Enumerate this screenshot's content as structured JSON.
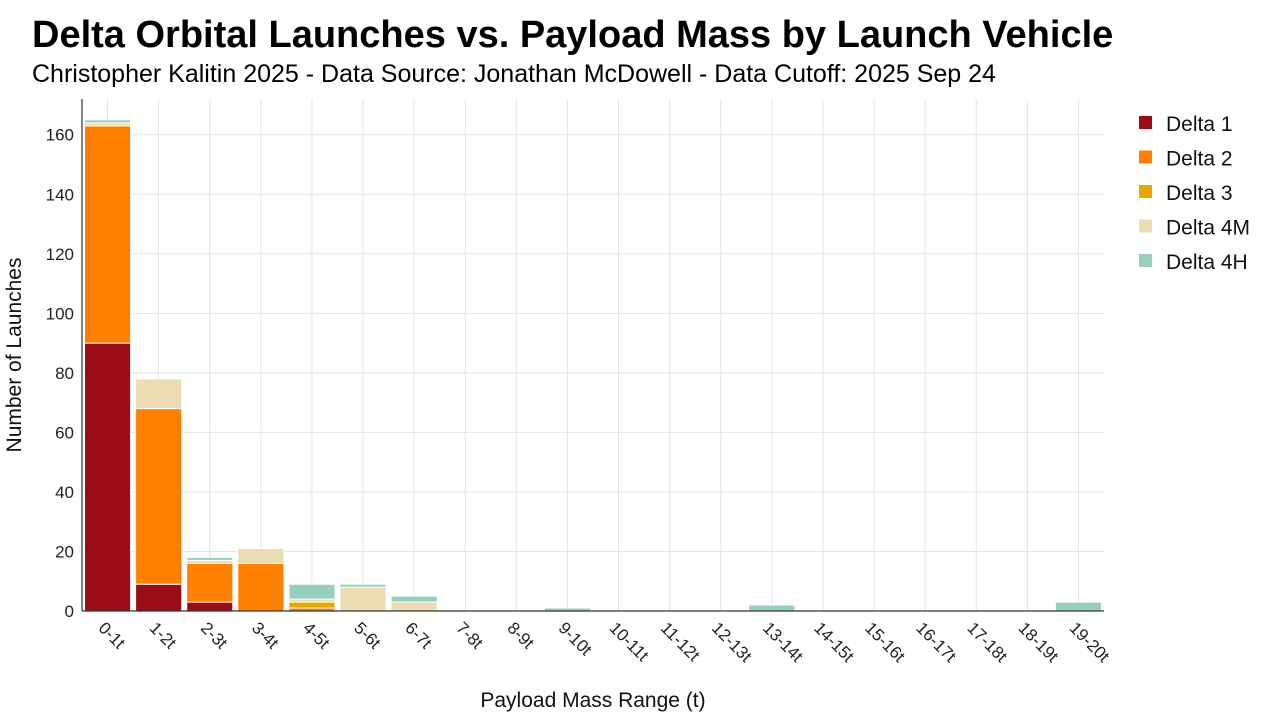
{
  "chart_data": {
    "type": "bar",
    "stacked": true,
    "title": "Delta Orbital Launches vs. Payload Mass by Launch Vehicle",
    "subtitle": "Christopher Kalitin 2025 - Data Source: Jonathan McDowell - Data Cutoff: 2025 Sep 24",
    "xlabel": "Payload Mass Range (t)",
    "ylabel": "Number of Launches",
    "ylim": [
      0,
      172
    ],
    "yticks": [
      0,
      20,
      40,
      60,
      80,
      100,
      120,
      140,
      160
    ],
    "grid": true,
    "legend_position": "right",
    "categories": [
      "0-1t",
      "1-2t",
      "2-3t",
      "3-4t",
      "4-5t",
      "5-6t",
      "6-7t",
      "7-8t",
      "8-9t",
      "9-10t",
      "10-11t",
      "11-12t",
      "12-13t",
      "13-14t",
      "14-15t",
      "15-16t",
      "16-17t",
      "17-18t",
      "18-19t",
      "19-20t"
    ],
    "series": [
      {
        "name": "Delta 1",
        "color": "#9b0d14",
        "values": [
          90,
          9,
          3,
          0,
          0,
          0,
          0,
          0,
          0,
          0,
          0,
          0,
          0,
          0,
          0,
          0,
          0,
          0,
          0,
          0
        ]
      },
      {
        "name": "Delta 2",
        "color": "#ff8000",
        "values": [
          73,
          59,
          13,
          16,
          1,
          0,
          0,
          0,
          0,
          0,
          0,
          0,
          0,
          0,
          0,
          0,
          0,
          0,
          0,
          0
        ]
      },
      {
        "name": "Delta 3",
        "color": "#e6a800",
        "values": [
          0,
          0,
          0,
          0,
          2,
          0,
          0,
          0,
          0,
          0,
          0,
          0,
          0,
          0,
          0,
          0,
          0,
          0,
          0,
          0
        ]
      },
      {
        "name": "Delta 4M",
        "color": "#ecdcb4",
        "values": [
          1,
          10,
          1,
          5,
          1,
          8,
          3,
          0,
          0,
          0,
          0,
          0,
          0,
          0,
          0,
          0,
          0,
          0,
          0,
          0
        ]
      },
      {
        "name": "Delta 4H",
        "color": "#96d0bc",
        "values": [
          1,
          0,
          1,
          0,
          5,
          1,
          2,
          0,
          0,
          1,
          0,
          0,
          0,
          2,
          0,
          0,
          0,
          0,
          0,
          3
        ]
      }
    ]
  }
}
